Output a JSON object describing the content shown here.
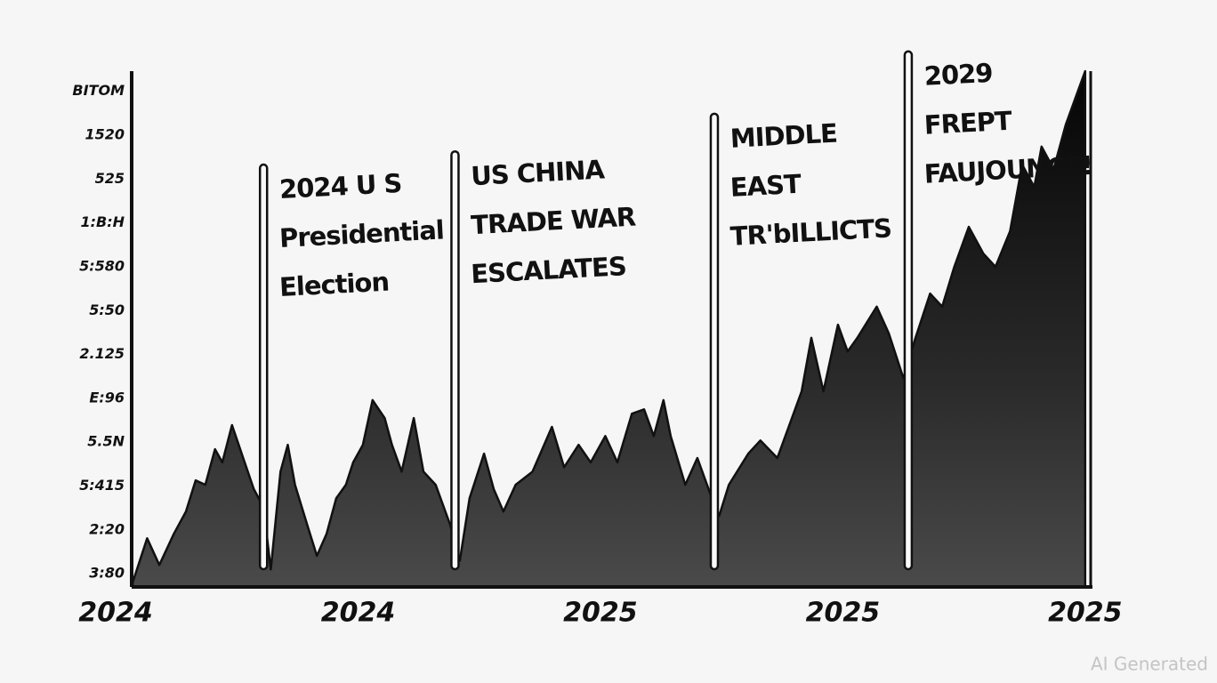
{
  "chart_data": {
    "type": "area",
    "color": "#111111",
    "xlim": [
      0.066,
      4.03
    ],
    "ylim": [
      -0.3,
      11.46
    ],
    "xticks": [
      {
        "value": 0,
        "label": "2024"
      },
      {
        "value": 1,
        "label": "2024"
      },
      {
        "value": 2,
        "label": "2025"
      },
      {
        "value": 3,
        "label": "2025"
      },
      {
        "value": 4,
        "label": "2025"
      }
    ],
    "yticks": [
      {
        "value": 0,
        "label": "3:80"
      },
      {
        "value": 1,
        "label": "2:20"
      },
      {
        "value": 2,
        "label": "5:415"
      },
      {
        "value": 3,
        "label": "5.5N"
      },
      {
        "value": 4,
        "label": "E:96"
      },
      {
        "value": 5,
        "label": "2.125"
      },
      {
        "value": 6,
        "label": "5:50"
      },
      {
        "value": 7,
        "label": "5:580"
      },
      {
        "value": 8,
        "label": "1:B:H"
      },
      {
        "value": 9,
        "label": "525"
      },
      {
        "value": 10,
        "label": "1520"
      },
      {
        "value": 11,
        "label": "BITOM"
      }
    ],
    "x": [
      0.07,
      0.13,
      0.18,
      0.24,
      0.29,
      0.33,
      0.37,
      0.41,
      0.44,
      0.48,
      0.52,
      0.57,
      0.61,
      0.64,
      0.68,
      0.71,
      0.74,
      0.79,
      0.83,
      0.87,
      0.91,
      0.95,
      0.98,
      1.02,
      1.06,
      1.11,
      1.14,
      1.18,
      1.23,
      1.27,
      1.32,
      1.38,
      1.42,
      1.46,
      1.52,
      1.56,
      1.6,
      1.65,
      1.72,
      1.8,
      1.85,
      1.91,
      1.96,
      2.02,
      2.07,
      2.13,
      2.18,
      2.22,
      2.26,
      2.29,
      2.35,
      2.4,
      2.46,
      2.49,
      2.53,
      2.61,
      2.66,
      2.73,
      2.79,
      2.83,
      2.87,
      2.92,
      2.98,
      3.02,
      3.06,
      3.14,
      3.19,
      3.25,
      3.3,
      3.36,
      3.41,
      3.46,
      3.52,
      3.58,
      3.63,
      3.69,
      3.74,
      3.79,
      3.82,
      3.87,
      3.92,
      3.96,
      4.0
    ],
    "values": [
      -0.2,
      0.81,
      0.2,
      0.91,
      1.42,
      2.13,
      2.03,
      2.84,
      2.54,
      3.39,
      2.74,
      1.93,
      1.52,
      0.1,
      2.33,
      2.94,
      2.03,
      1.12,
      0.41,
      0.91,
      1.72,
      2.03,
      2.54,
      2.94,
      3.96,
      3.55,
      2.94,
      2.33,
      3.55,
      2.33,
      2.03,
      1.12,
      0.3,
      1.72,
      2.74,
      1.93,
      1.42,
      2.03,
      2.33,
      3.35,
      2.43,
      2.94,
      2.54,
      3.14,
      2.54,
      3.65,
      3.75,
      3.14,
      3.96,
      3.14,
      2.03,
      2.64,
      1.72,
      1.32,
      2.03,
      2.74,
      3.04,
      2.64,
      3.55,
      4.16,
      5.38,
      4.16,
      5.68,
      5.07,
      5.38,
      6.09,
      5.48,
      4.46,
      5.38,
      6.39,
      6.09,
      7.0,
      7.91,
      7.3,
      7.0,
      7.81,
      9.33,
      8.82,
      9.74,
      9.23,
      10.24,
      10.85,
      11.46
    ],
    "annotations": [
      {
        "x": 0.61,
        "y": 9.33,
        "lines": [
          "2024 U S",
          "Presidential",
          "Election"
        ]
      },
      {
        "x": 1.4,
        "y": 9.63,
        "lines": [
          "US CHINA",
          "TRADE WAR",
          "ESCALATES"
        ]
      },
      {
        "x": 2.47,
        "y": 10.49,
        "lines": [
          "MIDDLE",
          "EAST",
          "TR'bILLICTS"
        ]
      },
      {
        "x": 3.27,
        "y": 11.91,
        "lines": [
          "2029",
          "FREPT",
          "FAUJOUNCE!"
        ]
      }
    ],
    "watermark": "AI Generated"
  }
}
